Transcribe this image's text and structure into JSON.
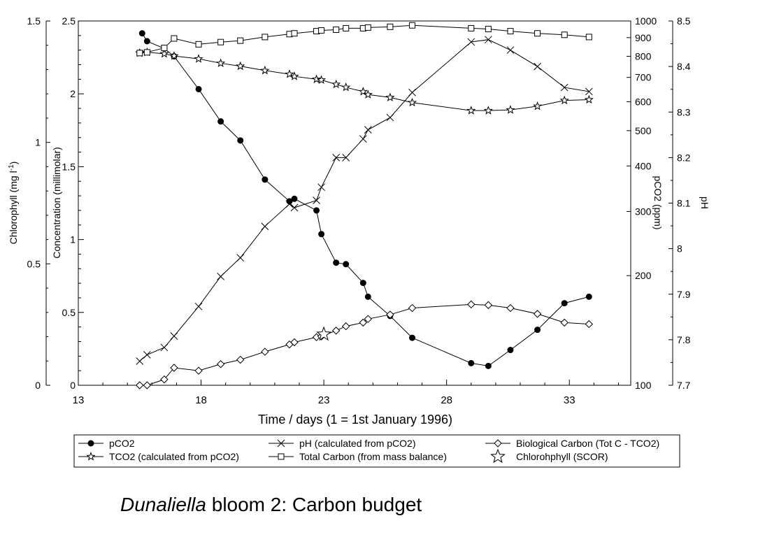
{
  "caption": {
    "italic": "Dunaliella",
    "rest": " bloom 2: Carbon budget"
  },
  "colors": {
    "line": "#000000",
    "background": "#ffffff"
  },
  "chart_data": {
    "type": "line",
    "xlabel": "Time / days (1 = 1st January 1996)",
    "xlim": [
      13,
      35.5
    ],
    "x_ticks": [
      "13",
      "18",
      "23",
      "28",
      "33"
    ],
    "axes": {
      "chlorophyll": {
        "label": "Chlorophyll (mg l-1)",
        "label_main": "Chlorophyll (mg l",
        "label_sup": "-1",
        "label_end": ")",
        "ylim": [
          0,
          1.5
        ],
        "ticks": [
          "0",
          "0.5",
          "1",
          "1.5"
        ],
        "tick_values": [
          0,
          0.5,
          1,
          1.5
        ]
      },
      "concentration": {
        "label": "Concentration (millimolar)",
        "ylim": [
          0,
          2.5
        ],
        "ticks": [
          "0",
          "0.5",
          "1",
          "1.5",
          "2",
          "2.5"
        ],
        "tick_values": [
          0,
          0.5,
          1,
          1.5,
          2,
          2.5
        ]
      },
      "pco2": {
        "label": "pCO2 (ppm)",
        "ylim": [
          100,
          1000
        ],
        "scale": "log",
        "ticks": [
          "100",
          "200",
          "300",
          "400",
          "500",
          "600",
          "700",
          "800",
          "900",
          "1000"
        ],
        "tick_values": [
          100,
          200,
          300,
          400,
          500,
          600,
          700,
          800,
          900,
          1000
        ]
      },
      "ph": {
        "label": "pH",
        "ylim": [
          7.7,
          8.5
        ],
        "ticks": [
          "7.7",
          "7.8",
          "7.9",
          "8",
          "8.1",
          "8.2",
          "8.3",
          "8.4",
          "8.5"
        ],
        "tick_values": [
          7.7,
          7.8,
          7.9,
          8,
          8.1,
          8.2,
          8.3,
          8.4,
          8.5
        ]
      }
    },
    "series": [
      {
        "name": "pCO2",
        "axis": "pco2",
        "marker": "filled-circle",
        "x": [
          15.6,
          15.8,
          16.5,
          16.9,
          17.9,
          18.8,
          19.6,
          20.6,
          21.6,
          21.8,
          22.7,
          22.9,
          23.5,
          23.9,
          24.6,
          24.8,
          25.7,
          26.6,
          29.0,
          29.7,
          30.6,
          31.7,
          32.8,
          33.8
        ],
        "y": [
          925,
          880,
          840,
          800,
          650,
          530,
          470,
          367,
          320,
          325,
          302,
          260,
          217,
          215,
          191,
          175,
          155,
          135,
          115,
          113,
          125,
          142,
          168,
          175
        ]
      },
      {
        "name": "pH (calculated from pCO2)",
        "axis": "ph",
        "marker": "x",
        "x": [
          15.5,
          15.8,
          16.5,
          16.9,
          17.9,
          18.8,
          19.6,
          20.6,
          21.6,
          21.8,
          22.7,
          22.9,
          23.5,
          23.9,
          24.6,
          24.8,
          25.7,
          26.6,
          29.0,
          29.7,
          30.6,
          31.7,
          32.8,
          33.8
        ],
        "y": [
          7.753,
          7.767,
          7.783,
          7.808,
          7.873,
          7.939,
          7.98,
          8.049,
          8.098,
          8.09,
          8.106,
          8.135,
          8.2,
          8.2,
          8.241,
          8.261,
          8.288,
          8.343,
          8.454,
          8.459,
          8.436,
          8.4,
          8.354,
          8.345
        ]
      },
      {
        "name": "Biological Carbon (Tot C - TCO2)",
        "axis": "concentration",
        "marker": "open-diamond",
        "x": [
          15.5,
          15.8,
          16.5,
          16.9,
          17.9,
          18.8,
          19.6,
          20.6,
          21.6,
          21.8,
          22.7,
          22.9,
          23.5,
          23.9,
          24.6,
          24.8,
          25.7,
          26.6,
          29.0,
          29.7,
          30.6,
          31.7,
          32.8,
          33.8
        ],
        "y": [
          0.0,
          0.0,
          0.04,
          0.12,
          0.1,
          0.145,
          0.175,
          0.23,
          0.28,
          0.295,
          0.33,
          0.335,
          0.375,
          0.405,
          0.43,
          0.455,
          0.485,
          0.53,
          0.555,
          0.55,
          0.53,
          0.49,
          0.43,
          0.42
        ]
      },
      {
        "name": "TCO2 (calculated from pCO2)",
        "axis": "concentration",
        "marker": "open-star",
        "x": [
          15.5,
          15.8,
          16.5,
          16.9,
          17.9,
          18.8,
          19.6,
          20.6,
          21.6,
          21.8,
          22.7,
          22.9,
          23.5,
          23.9,
          24.6,
          24.8,
          25.7,
          26.6,
          29.0,
          29.7,
          30.6,
          31.7,
          32.8,
          33.8
        ],
        "y": [
          2.28,
          2.285,
          2.275,
          2.26,
          2.24,
          2.21,
          2.19,
          2.16,
          2.135,
          2.12,
          2.1,
          2.095,
          2.065,
          2.045,
          2.015,
          1.995,
          1.975,
          1.94,
          1.885,
          1.885,
          1.89,
          1.915,
          1.955,
          1.96
        ]
      },
      {
        "name": "Total Carbon (from mass balance)",
        "axis": "concentration",
        "marker": "open-square",
        "x": [
          15.5,
          15.8,
          16.5,
          16.9,
          17.9,
          18.8,
          19.6,
          20.6,
          21.6,
          21.8,
          22.7,
          22.9,
          23.5,
          23.9,
          24.6,
          24.8,
          25.7,
          26.6,
          29.0,
          29.7,
          30.6,
          31.7,
          32.8,
          33.8
        ],
        "y": [
          2.28,
          2.285,
          2.315,
          2.38,
          2.34,
          2.355,
          2.365,
          2.39,
          2.41,
          2.415,
          2.43,
          2.435,
          2.44,
          2.45,
          2.45,
          2.455,
          2.46,
          2.47,
          2.45,
          2.445,
          2.43,
          2.415,
          2.405,
          2.39
        ]
      },
      {
        "name": "Chlorohphyll (SCOR)",
        "axis": "chlorophyll",
        "marker": "open-star-large",
        "line": false,
        "x": [
          23.0
        ],
        "y": [
          0.21
        ]
      }
    ],
    "legend": {
      "position": "bottom",
      "columns": 3
    }
  }
}
